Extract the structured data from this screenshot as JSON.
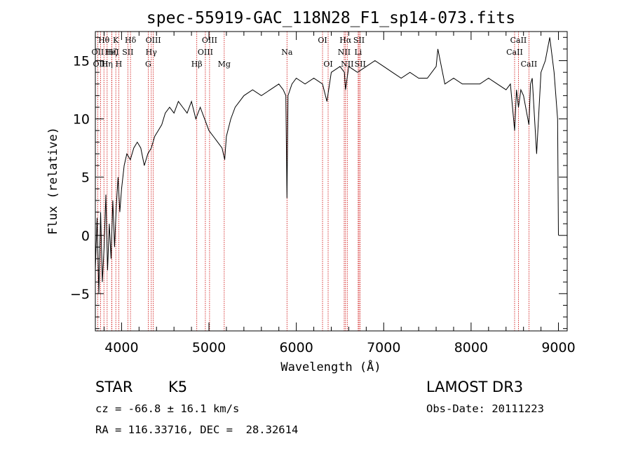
{
  "chart_data": {
    "type": "line",
    "title": "spec-55919-GAC_118N28_F1_sp14-073.fits",
    "xlabel": "Wavelength (Å)",
    "ylabel": "Flux (relative)",
    "xlim": [
      3700,
      9100
    ],
    "ylim": [
      -8.2,
      17.5
    ],
    "x_ticks": [
      4000,
      5000,
      6000,
      7000,
      8000,
      9000
    ],
    "y_ticks": [
      -5,
      0,
      5,
      10,
      15
    ],
    "series": [
      {
        "name": "flux",
        "x": [
          3700,
          3720,
          3740,
          3760,
          3780,
          3800,
          3820,
          3840,
          3860,
          3880,
          3900,
          3920,
          3940,
          3960,
          3980,
          4000,
          4030,
          4060,
          4100,
          4140,
          4180,
          4220,
          4260,
          4300,
          4340,
          4380,
          4420,
          4460,
          4500,
          4550,
          4600,
          4650,
          4700,
          4750,
          4800,
          4850,
          4900,
          4950,
          5000,
          5050,
          5100,
          5150,
          5180,
          5200,
          5250,
          5300,
          5400,
          5500,
          5600,
          5700,
          5800,
          5850,
          5880,
          5893,
          5905,
          5950,
          6000,
          6100,
          6200,
          6300,
          6350,
          6400,
          6500,
          6550,
          6563,
          6600,
          6700,
          6800,
          6900,
          7000,
          7100,
          7200,
          7300,
          7400,
          7500,
          7600,
          7620,
          7700,
          7800,
          7900,
          8000,
          8100,
          8200,
          8300,
          8400,
          8450,
          8498,
          8520,
          8542,
          8570,
          8600,
          8662,
          8680,
          8700,
          8750,
          8800,
          8850,
          8900,
          8950,
          8990,
          9000
        ],
        "y": [
          -3.0,
          1.5,
          -5.0,
          2.0,
          -4.0,
          -1.0,
          3.5,
          -3.0,
          1.0,
          -2.0,
          3.0,
          -1.0,
          2.5,
          5.0,
          2.0,
          4.0,
          6.0,
          7.0,
          6.5,
          7.5,
          8.0,
          7.5,
          6.0,
          7.0,
          7.5,
          8.5,
          9.0,
          9.5,
          10.5,
          11.0,
          10.5,
          11.5,
          11.0,
          10.5,
          11.5,
          10.0,
          11.0,
          10.0,
          9.0,
          8.5,
          8.0,
          7.5,
          6.5,
          8.5,
          10.0,
          11.0,
          12.0,
          12.5,
          12.0,
          12.5,
          13.0,
          12.5,
          12.0,
          3.2,
          12.0,
          13.0,
          13.5,
          13.0,
          13.5,
          13.0,
          11.5,
          14.0,
          14.5,
          14.0,
          12.5,
          14.5,
          14.0,
          14.5,
          15.0,
          14.5,
          14.0,
          13.5,
          14.0,
          13.5,
          13.5,
          14.5,
          16.0,
          13.0,
          13.5,
          13.0,
          13.0,
          13.0,
          13.5,
          13.0,
          12.5,
          13.0,
          9.0,
          12.5,
          11.0,
          12.5,
          12.0,
          9.5,
          13.0,
          13.5,
          7.0,
          14.0,
          15.0,
          17.0,
          14.0,
          10.0,
          0.0
        ]
      }
    ],
    "line_markers": [
      {
        "name": "Hθ",
        "wavelength": 3798,
        "row": 1
      },
      {
        "name": "OII",
        "wavelength": 3727,
        "row": 2
      },
      {
        "name": "OIII",
        "wavelength": 3760,
        "row": 3
      },
      {
        "name": "Hη",
        "wavelength": 3835,
        "row": 3
      },
      {
        "name": "K",
        "wavelength": 3934,
        "row": 1
      },
      {
        "name": "Hζ",
        "wavelength": 3889,
        "row": 2
      },
      {
        "name": "H",
        "wavelength": 3968,
        "row": 3
      },
      {
        "name": "HeI",
        "wavelength": 3889,
        "row": 2
      },
      {
        "name": "SII",
        "wavelength": 4072,
        "row": 2
      },
      {
        "name": "Hδ",
        "wavelength": 4102,
        "row": 1
      },
      {
        "name": "OIII",
        "wavelength": 4363,
        "row": 1
      },
      {
        "name": "Hγ",
        "wavelength": 4340,
        "row": 2
      },
      {
        "name": "G",
        "wavelength": 4305,
        "row": 3
      },
      {
        "name": "OIII",
        "wavelength": 5007,
        "row": 1
      },
      {
        "name": "OIII",
        "wavelength": 4959,
        "row": 2
      },
      {
        "name": "Hβ",
        "wavelength": 4861,
        "row": 3
      },
      {
        "name": "Mg",
        "wavelength": 5175,
        "row": 3
      },
      {
        "name": "Na",
        "wavelength": 5893,
        "row": 2
      },
      {
        "name": "OI",
        "wavelength": 6300,
        "row": 1
      },
      {
        "name": "OI",
        "wavelength": 6364,
        "row": 3
      },
      {
        "name": "Hα",
        "wavelength": 6563,
        "row": 1
      },
      {
        "name": "NII",
        "wavelength": 6548,
        "row": 2
      },
      {
        "name": "NII",
        "wavelength": 6583,
        "row": 3
      },
      {
        "name": "SII",
        "wavelength": 6717,
        "row": 1
      },
      {
        "name": "Li",
        "wavelength": 6708,
        "row": 2
      },
      {
        "name": "SII",
        "wavelength": 6731,
        "row": 3
      },
      {
        "name": "CaII",
        "wavelength": 8542,
        "row": 1
      },
      {
        "name": "CaII",
        "wavelength": 8498,
        "row": 2
      },
      {
        "name": "CaII",
        "wavelength": 8662,
        "row": 3
      }
    ]
  },
  "info": {
    "class_label": "STAR",
    "subclass": "K5",
    "survey": "LAMOST DR3",
    "redshift_text": "cz = -66.8 ± 16.1 km/s",
    "obs_date_text": "Obs-Date: 20111223",
    "coords_text": "RA = 116.33716, DEC =  28.32614"
  },
  "colors": {
    "spectrum": "#000000",
    "marker": "#cc0000",
    "axes": "#000000"
  }
}
